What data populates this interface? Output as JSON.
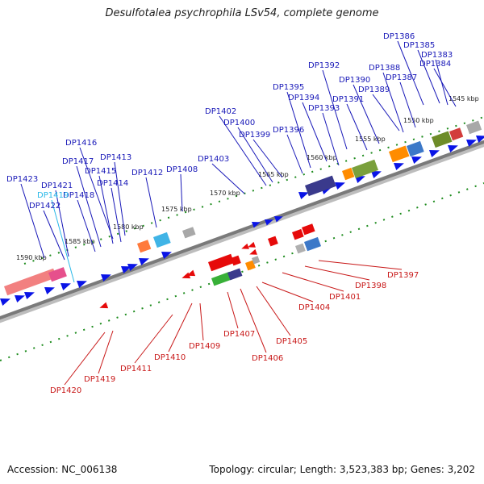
{
  "title": "Desulfotalea psychrophila LSv54, complete genome",
  "footer": {
    "accession": "Accession: NC_006138",
    "topology": "Topology: circular; Length: 3,523,383 bp; Genes: 3,202"
  },
  "colors": {
    "backbone": "#8c8c8c",
    "tick": "#1e8c1e",
    "top_label": "#1818b8",
    "bottom_label": "#c81818",
    "highlight_label": "#28b8e8",
    "gene_forward": "#0a14e6",
    "gene_reverse": "#e60a0a"
  },
  "kbp_labels": [
    "1545 kbp",
    "1550 kbp",
    "1555 kbp",
    "1560 kbp",
    "1565 kbp",
    "1570 kbp",
    "1575 kbp",
    "1580 kbp",
    "1585 kbp",
    "1590 kbp"
  ],
  "top_labels": [
    "DP1386",
    "DP1385",
    "DP1383",
    "DP1384",
    "DP1392",
    "DP1388",
    "DP1390",
    "DP1389",
    "DP1387",
    "DP1395",
    "DP1394",
    "DP1391",
    "DP1393",
    "DP1402",
    "DP1400",
    "DP1399",
    "DP1396",
    "DP1416",
    "DP1413",
    "DP1417",
    "DP1415",
    "DP1403",
    "DP1408",
    "DP1412",
    "DP1414",
    "DP1423",
    "DP1421",
    "DP1418",
    "DP1422"
  ],
  "highlight_label": "DP1419",
  "bottom_labels": [
    "DP1397",
    "DP1398",
    "DP1401",
    "DP1404",
    "DP1405",
    "DP1406",
    "DP1407",
    "DP1409",
    "DP1410",
    "DP1411",
    "DP1419",
    "DP1420"
  ]
}
